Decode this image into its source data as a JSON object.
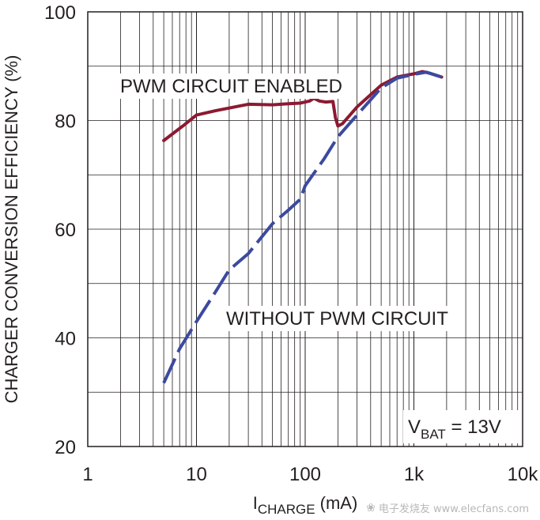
{
  "chart_data": {
    "type": "line",
    "title": "",
    "xscale": "log",
    "xlim": [
      1,
      10000
    ],
    "ylim": [
      20,
      100
    ],
    "x_ticks": [
      {
        "value": 1,
        "label": "1"
      },
      {
        "value": 10,
        "label": "10"
      },
      {
        "value": 100,
        "label": "100"
      },
      {
        "value": 1000,
        "label": "1k"
      },
      {
        "value": 10000,
        "label": "10k"
      }
    ],
    "y_ticks": [
      {
        "value": 20,
        "label": "20"
      },
      {
        "value": 40,
        "label": "40"
      },
      {
        "value": 60,
        "label": "60"
      },
      {
        "value": 80,
        "label": "80"
      },
      {
        "value": 100,
        "label": "100"
      }
    ],
    "xlabel": {
      "main": "I",
      "sub": "CHARGE",
      "rest": " (mA)"
    },
    "ylabel": "CHARGER CONVERSION EFFICIENCY (%)",
    "grid": true,
    "annotations": {
      "pwm_label": "PWM CIRCUIT ENABLED",
      "without_label": "WITHOUT PWM CIRCUIT",
      "vbat": {
        "main": "V",
        "sub": "BAT",
        "rest": " = 13V"
      }
    },
    "series": [
      {
        "color": "#8b1a32",
        "style": "solid",
        "points": [
          [
            5,
            76.3
          ],
          [
            7.5,
            79
          ],
          [
            10,
            81
          ],
          [
            15,
            81.8
          ],
          [
            20,
            82.3
          ],
          [
            30,
            83
          ],
          [
            50,
            82.9
          ],
          [
            70,
            83.1
          ],
          [
            90,
            83.2
          ],
          [
            110,
            83.6
          ],
          [
            120,
            84.1
          ],
          [
            135,
            83.6
          ],
          [
            155,
            83.4
          ],
          [
            180,
            83.5
          ],
          [
            190,
            80.5
          ],
          [
            200,
            79
          ],
          [
            220,
            79.4
          ],
          [
            300,
            82.5
          ],
          [
            500,
            86.5
          ],
          [
            700,
            88
          ],
          [
            1000,
            88.6
          ],
          [
            1200,
            89
          ],
          [
            1400,
            88.7
          ],
          [
            1800,
            88
          ]
        ]
      },
      {
        "color": "#3b4a9e",
        "style": "dashed",
        "points": [
          [
            5,
            31.7
          ],
          [
            7,
            38
          ],
          [
            10,
            43
          ],
          [
            15,
            48.5
          ],
          [
            20,
            52.5
          ],
          [
            30,
            55.5
          ],
          [
            50,
            61
          ],
          [
            70,
            63.5
          ],
          [
            90,
            65.5
          ],
          [
            100,
            68
          ],
          [
            150,
            73
          ],
          [
            200,
            77
          ],
          [
            300,
            81
          ],
          [
            500,
            86
          ],
          [
            700,
            87.8
          ],
          [
            1000,
            88.5
          ],
          [
            1300,
            88.9
          ],
          [
            1800,
            88
          ]
        ]
      }
    ]
  },
  "watermark": "电子发烧友 www.elecfans.com"
}
